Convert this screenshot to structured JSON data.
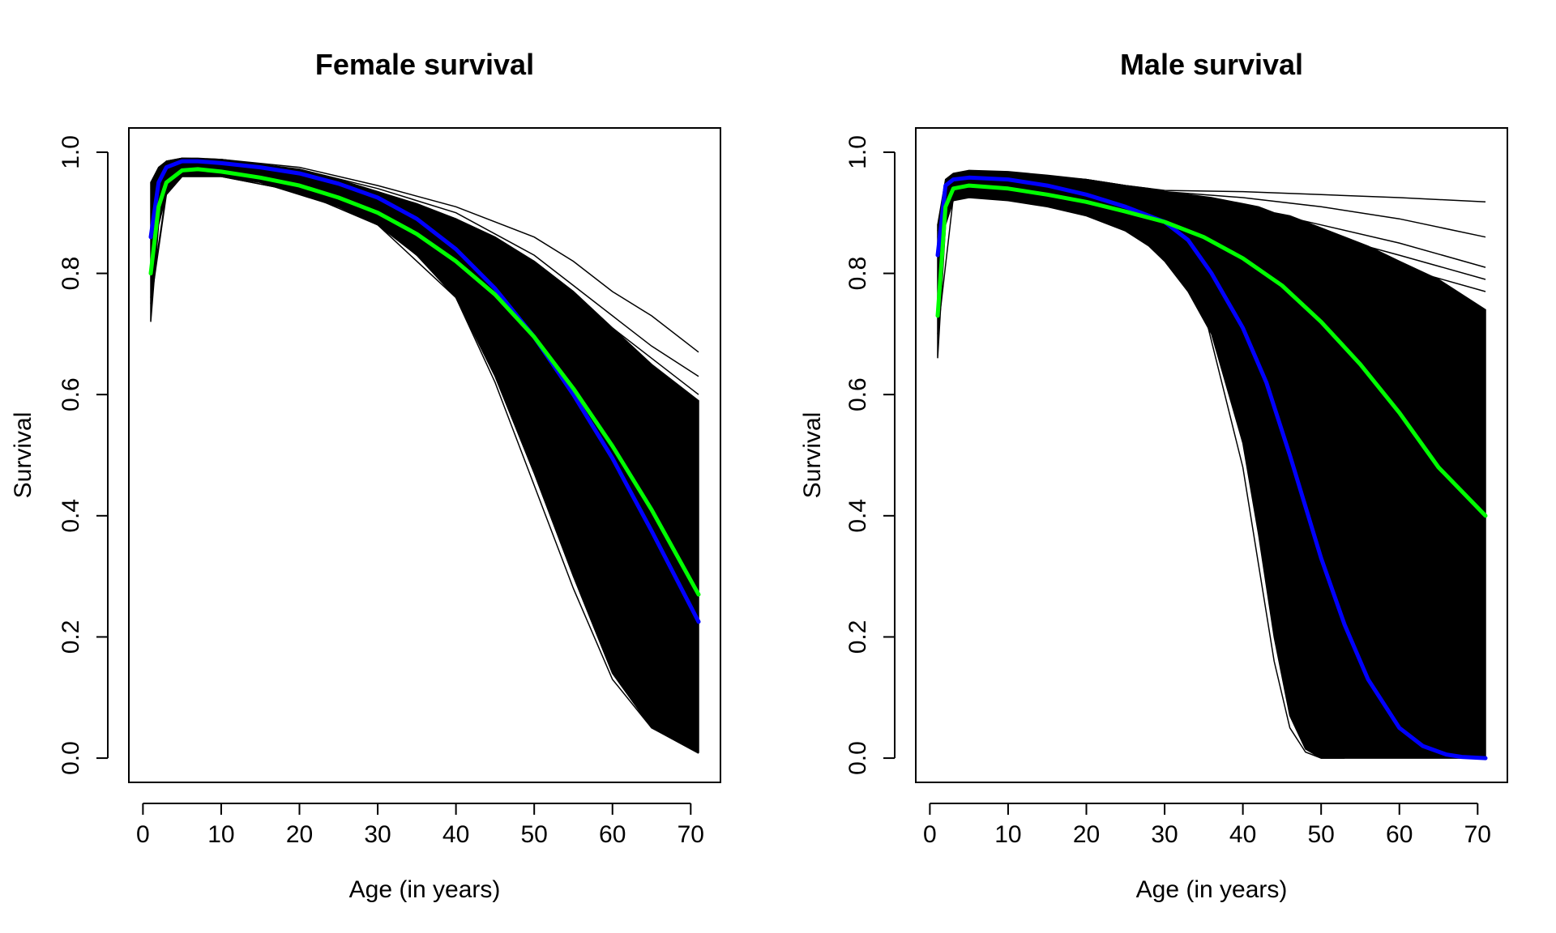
{
  "chart_data": [
    {
      "type": "line",
      "title": "Female survival",
      "xlabel": "Age (in years)",
      "ylabel": "Survival",
      "xlim": [
        -1.8,
        73.8
      ],
      "ylim": [
        -0.04,
        1.04
      ],
      "x_ticks": [
        0,
        10,
        20,
        30,
        40,
        50,
        60,
        70
      ],
      "y_ticks": [
        0.0,
        0.2,
        0.4,
        0.6,
        0.8,
        1.0
      ],
      "x_tick_labels": [
        "0",
        "10",
        "20",
        "30",
        "40",
        "50",
        "60",
        "70"
      ],
      "y_tick_labels": [
        "0.0",
        "0.2",
        "0.4",
        "0.6",
        "0.8",
        "1.0"
      ],
      "grid": false,
      "legend": "none",
      "series": [
        {
          "color": "#0000ff",
          "x": [
            1,
            2,
            3,
            5,
            7,
            10,
            15,
            20,
            25,
            30,
            35,
            40,
            45,
            50,
            55,
            60,
            65,
            71
          ],
          "y": [
            0.86,
            0.95,
            0.975,
            0.985,
            0.985,
            0.982,
            0.975,
            0.965,
            0.948,
            0.925,
            0.89,
            0.84,
            0.775,
            0.695,
            0.6,
            0.495,
            0.375,
            0.225
          ]
        },
        {
          "color": "#00ff00",
          "x": [
            1,
            2,
            3,
            5,
            7,
            10,
            15,
            20,
            25,
            30,
            35,
            40,
            45,
            50,
            55,
            60,
            65,
            71
          ],
          "y": [
            0.8,
            0.91,
            0.95,
            0.97,
            0.972,
            0.968,
            0.958,
            0.945,
            0.925,
            0.9,
            0.865,
            0.82,
            0.765,
            0.695,
            0.61,
            0.515,
            0.41,
            0.27
          ]
        }
      ],
      "simulation_envelope": {
        "color": "#000000",
        "x": [
          1,
          2,
          3,
          5,
          7,
          10,
          15,
          20,
          25,
          30,
          35,
          40,
          45,
          50,
          55,
          60,
          65,
          71
        ],
        "upper": [
          0.95,
          0.975,
          0.985,
          0.99,
          0.99,
          0.988,
          0.98,
          0.97,
          0.955,
          0.935,
          0.915,
          0.89,
          0.86,
          0.82,
          0.77,
          0.71,
          0.65,
          0.59
        ],
        "lower": [
          0.72,
          0.88,
          0.93,
          0.96,
          0.96,
          0.96,
          0.95,
          0.93,
          0.91,
          0.88,
          0.83,
          0.76,
          0.63,
          0.47,
          0.3,
          0.14,
          0.05,
          0.01
        ],
        "outlier_lines": [
          {
            "x": [
              1,
              3,
              5,
              10,
              20,
              30,
              40,
              50,
              55,
              60,
              65,
              71
            ],
            "y": [
              0.95,
              0.985,
              0.99,
              0.988,
              0.975,
              0.945,
              0.91,
              0.86,
              0.82,
              0.77,
              0.73,
              0.67
            ]
          },
          {
            "x": [
              1,
              3,
              5,
              10,
              20,
              30,
              40,
              50,
              55,
              60,
              65,
              71
            ],
            "y": [
              0.95,
              0.985,
              0.99,
              0.988,
              0.972,
              0.94,
              0.9,
              0.83,
              0.78,
              0.73,
              0.68,
              0.63
            ]
          },
          {
            "x": [
              1,
              3,
              5,
              10,
              20,
              30,
              40,
              50,
              55,
              60,
              65,
              71
            ],
            "y": [
              0.94,
              0.98,
              0.985,
              0.985,
              0.97,
              0.935,
              0.89,
              0.82,
              0.77,
              0.71,
              0.66,
              0.6
            ]
          },
          {
            "x": [
              1,
              3,
              5,
              10,
              20,
              30,
              40,
              45,
              50,
              55,
              60,
              65,
              71
            ],
            "y": [
              0.75,
              0.93,
              0.96,
              0.96,
              0.935,
              0.88,
              0.76,
              0.62,
              0.45,
              0.28,
              0.13,
              0.05,
              0.008
            ]
          },
          {
            "x": [
              1,
              3,
              5,
              10,
              20,
              30,
              40,
              45,
              50,
              55,
              60,
              65,
              71
            ],
            "y": [
              0.76,
              0.935,
              0.96,
              0.96,
              0.935,
              0.885,
              0.775,
              0.66,
              0.5,
              0.33,
              0.17,
              0.07,
              0.02
            ]
          }
        ]
      }
    },
    {
      "type": "line",
      "title": "Male survival",
      "xlabel": "Age (in years)",
      "ylabel": "Survival",
      "xlim": [
        -1.8,
        73.8
      ],
      "ylim": [
        -0.04,
        1.04
      ],
      "x_ticks": [
        0,
        10,
        20,
        30,
        40,
        50,
        60,
        70
      ],
      "y_ticks": [
        0.0,
        0.2,
        0.4,
        0.6,
        0.8,
        1.0
      ],
      "x_tick_labels": [
        "0",
        "10",
        "20",
        "30",
        "40",
        "50",
        "60",
        "70"
      ],
      "y_tick_labels": [
        "0.0",
        "0.2",
        "0.4",
        "0.6",
        "0.8",
        "1.0"
      ],
      "grid": false,
      "legend": "none",
      "series": [
        {
          "color": "#0000ff",
          "x": [
            1,
            2,
            3,
            5,
            10,
            15,
            20,
            25,
            30,
            33,
            36,
            40,
            43,
            46,
            50,
            53,
            56,
            60,
            63,
            66,
            68,
            71
          ],
          "y": [
            0.83,
            0.945,
            0.955,
            0.958,
            0.955,
            0.945,
            0.93,
            0.91,
            0.885,
            0.855,
            0.8,
            0.71,
            0.62,
            0.5,
            0.33,
            0.22,
            0.13,
            0.05,
            0.02,
            0.006,
            0.002,
            0.0
          ]
        },
        {
          "color": "#00ff00",
          "x": [
            1,
            2,
            3,
            5,
            10,
            15,
            20,
            25,
            30,
            35,
            40,
            45,
            50,
            55,
            60,
            65,
            71
          ],
          "y": [
            0.73,
            0.91,
            0.94,
            0.945,
            0.94,
            0.93,
            0.918,
            0.902,
            0.885,
            0.86,
            0.825,
            0.78,
            0.72,
            0.65,
            0.57,
            0.48,
            0.4
          ]
        }
      ],
      "simulation_envelope": {
        "color": "#000000",
        "x": [
          1,
          2,
          3,
          5,
          10,
          15,
          20,
          25,
          28,
          30,
          33,
          36,
          40,
          42,
          44,
          46,
          48,
          50,
          53,
          56,
          60,
          65,
          71
        ],
        "upper": [
          0.88,
          0.955,
          0.965,
          0.97,
          0.968,
          0.962,
          0.955,
          0.945,
          0.94,
          0.935,
          0.93,
          0.925,
          0.915,
          0.91,
          0.9,
          0.895,
          0.885,
          0.875,
          0.86,
          0.845,
          0.82,
          0.79,
          0.74
        ],
        "lower": [
          0.66,
          0.88,
          0.92,
          0.925,
          0.92,
          0.91,
          0.895,
          0.87,
          0.845,
          0.82,
          0.77,
          0.7,
          0.52,
          0.37,
          0.2,
          0.07,
          0.015,
          0.0,
          0.0,
          0.0,
          0.0,
          0.0,
          0.0
        ],
        "outlier_lines": [
          {
            "x": [
              1,
              3,
              5,
              10,
              20,
              25,
              30,
              40,
              50,
              60,
              71
            ],
            "y": [
              0.88,
              0.955,
              0.965,
              0.965,
              0.955,
              0.945,
              0.937,
              0.935,
              0.93,
              0.925,
              0.918
            ]
          },
          {
            "x": [
              1,
              3,
              5,
              10,
              20,
              25,
              30,
              40,
              50,
              60,
              71
            ],
            "y": [
              0.88,
              0.955,
              0.965,
              0.965,
              0.955,
              0.945,
              0.935,
              0.925,
              0.91,
              0.89,
              0.86
            ]
          },
          {
            "x": [
              1,
              3,
              5,
              10,
              20,
              30,
              40,
              50,
              60,
              71
            ],
            "y": [
              0.87,
              0.95,
              0.96,
              0.96,
              0.95,
              0.93,
              0.91,
              0.88,
              0.85,
              0.81
            ]
          },
          {
            "x": [
              1,
              3,
              5,
              10,
              20,
              30,
              40,
              50,
              60,
              71
            ],
            "y": [
              0.87,
              0.95,
              0.96,
              0.96,
              0.948,
              0.925,
              0.9,
              0.865,
              0.83,
              0.79
            ]
          },
          {
            "x": [
              1,
              3,
              5,
              10,
              20,
              30,
              40,
              50,
              60,
              71
            ],
            "y": [
              0.86,
              0.95,
              0.96,
              0.958,
              0.945,
              0.92,
              0.89,
              0.85,
              0.81,
              0.77
            ]
          },
          {
            "x": [
              1,
              3,
              5,
              10,
              20,
              30,
              35,
              40,
              42,
              44,
              46,
              48,
              50,
              53
            ],
            "y": [
              0.7,
              0.925,
              0.93,
              0.925,
              0.9,
              0.85,
              0.74,
              0.48,
              0.32,
              0.16,
              0.05,
              0.01,
              0.0,
              0.0
            ]
          }
        ]
      }
    }
  ]
}
